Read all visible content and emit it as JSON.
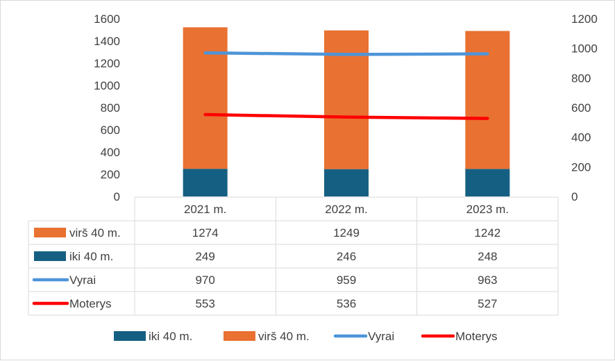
{
  "chart_data": {
    "type": "bar",
    "stacked": true,
    "categories": [
      "2021 m.",
      "2022 m.",
      "2023 m."
    ],
    "series": [
      {
        "name": "iki 40 m.",
        "kind": "bar",
        "axis": "left",
        "color": "#156082",
        "values": [
          249,
          246,
          248
        ]
      },
      {
        "name": "virš 40 m.",
        "kind": "bar",
        "axis": "left",
        "color": "#e97132",
        "values": [
          1274,
          1249,
          1242
        ]
      },
      {
        "name": "Vyrai",
        "kind": "line",
        "axis": "right",
        "color": "#4e95d9",
        "values": [
          970,
          959,
          963
        ]
      },
      {
        "name": "Moterys",
        "kind": "line",
        "axis": "right",
        "color": "#ff0000",
        "values": [
          553,
          536,
          527
        ]
      }
    ],
    "y_left": {
      "ylim": [
        0,
        1600
      ],
      "ticks": [
        "0",
        "200",
        "400",
        "600",
        "800",
        "1000",
        "1200",
        "1400",
        "1600"
      ]
    },
    "y_right": {
      "ylim": [
        0,
        1200
      ],
      "ticks": [
        "0",
        "200",
        "400",
        "600",
        "800",
        "1000",
        "1200"
      ]
    },
    "data_table": {
      "row_order": [
        "virš 40 m.",
        "iki 40 m.",
        "Vyrai",
        "Moterys"
      ],
      "rows": [
        {
          "label": "virš 40 m.",
          "values": [
            "1274",
            "1249",
            "1242"
          ]
        },
        {
          "label": "iki 40 m.",
          "values": [
            "249",
            "246",
            "248"
          ]
        },
        {
          "label": "Vyrai",
          "values": [
            "970",
            "959",
            "963"
          ]
        },
        {
          "label": "Moterys",
          "values": [
            "553",
            "536",
            "527"
          ]
        }
      ]
    },
    "legend": {
      "position": "bottom",
      "items": [
        "iki 40 m.",
        "virš 40 m.",
        "Vyrai",
        "Moterys"
      ]
    },
    "grid": false
  }
}
